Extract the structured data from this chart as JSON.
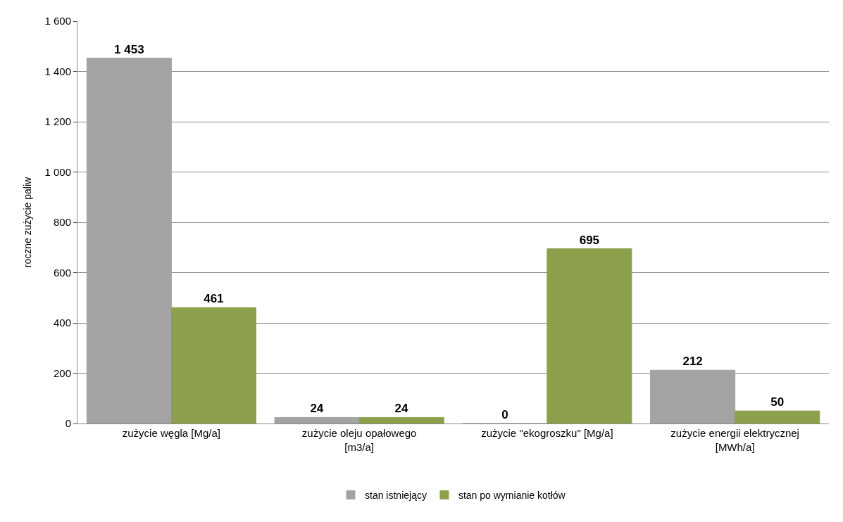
{
  "chart_data": {
    "type": "bar",
    "ylabel": "roczne zużycie paliw",
    "categories": [
      "zużycie węgla [Mg/a]",
      "zużycie oleju opałowego [m3/a]",
      "zużycie \"ekogroszku\" [Mg/a]",
      "zużycie energii elektrycznej [MWh/a]"
    ],
    "series": [
      {
        "name": "stan istniejący",
        "color": "#a3a3a3",
        "values": [
          1453,
          24,
          0,
          212
        ],
        "value_labels": [
          "1 453",
          "24",
          "0",
          "212"
        ]
      },
      {
        "name": "stan po wymianie kotłów",
        "color": "#8ca04c",
        "values": [
          461,
          24,
          695,
          50
        ],
        "value_labels": [
          "461",
          "24",
          "695",
          "50"
        ]
      }
    ],
    "ylim": [
      0,
      1600
    ],
    "yticks": [
      0,
      200,
      400,
      600,
      800,
      {
        "value": 1000,
        "label": "1 000"
      },
      {
        "value": 1200,
        "label": "1 200"
      },
      {
        "value": 1400,
        "label": "1 400"
      },
      {
        "value": 1600,
        "label": "1 600"
      }
    ],
    "grid": "y",
    "legend": "bottom"
  }
}
